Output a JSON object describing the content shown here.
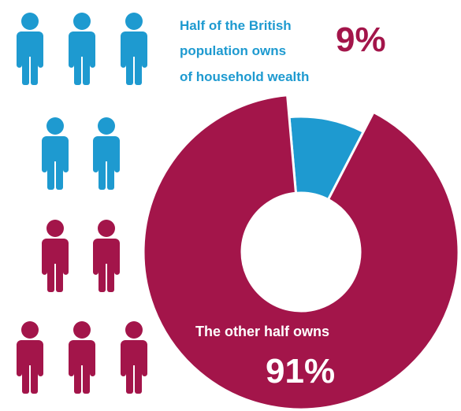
{
  "colors": {
    "blue": "#1e9ad0",
    "maroon": "#a3154a",
    "white": "#ffffff"
  },
  "pictogram": {
    "icon": "person-icon",
    "blue_count": 5,
    "maroon_count": 5
  },
  "top_label": {
    "lines": [
      "Half of the British",
      "population owns",
      "of household wealth"
    ],
    "value": "9%"
  },
  "bottom_label": {
    "line": "The other half owns",
    "value": "91%"
  },
  "chart_data": {
    "type": "pie",
    "categories": [
      "Half of the British population",
      "The other half"
    ],
    "values": [
      9,
      91
    ],
    "unit": "%"
  }
}
